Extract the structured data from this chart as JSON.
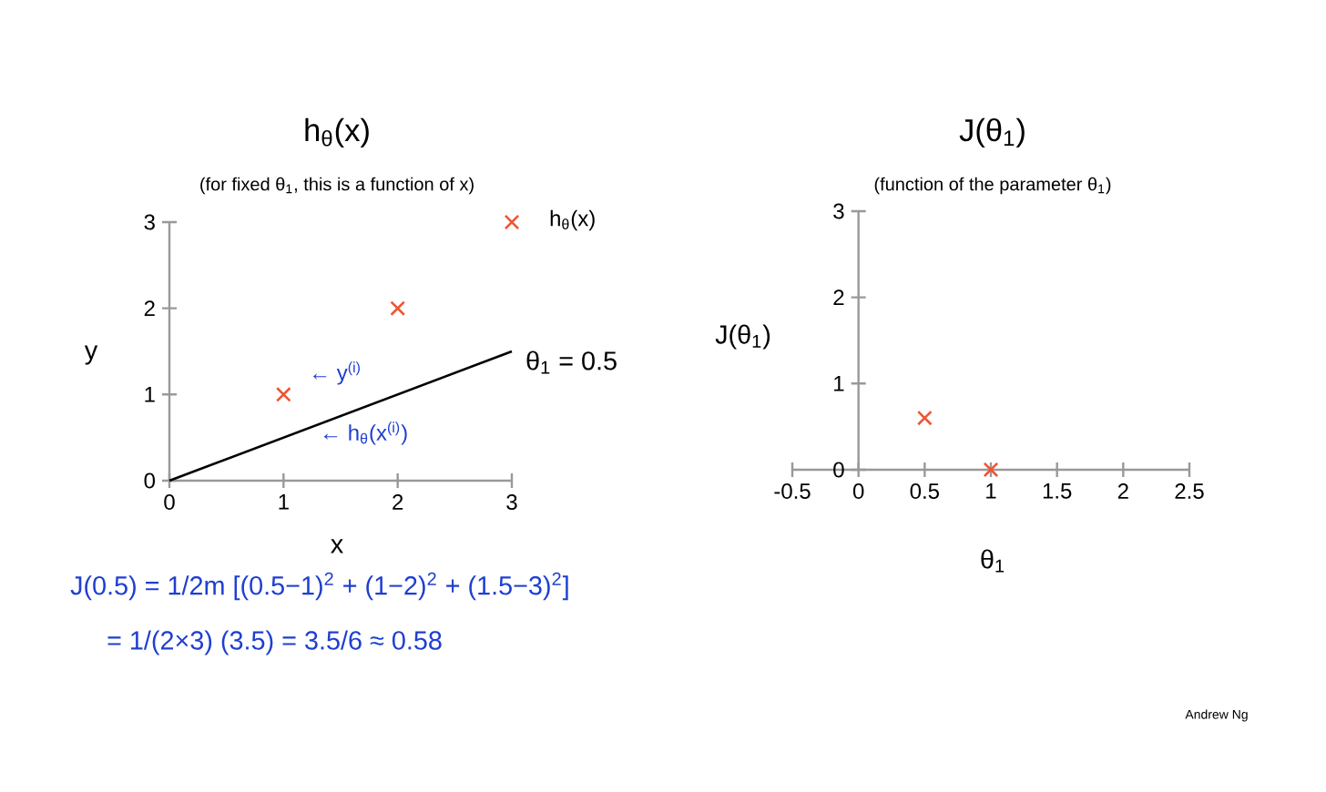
{
  "chart_data": [
    {
      "type": "scatter",
      "title": "h$_{θ}$(x)",
      "subtitle": "(for fixed θ$_{1}$, this is a function of x)",
      "xlabel": "x",
      "ylabel": "y",
      "xlim": [
        0,
        3
      ],
      "ylim": [
        0,
        3
      ],
      "xticks": [
        0,
        1,
        2,
        3
      ],
      "yticks": [
        0,
        1,
        2,
        3
      ],
      "marker": "cross",
      "series": [
        {
          "x": [
            1,
            2,
            3
          ],
          "values": [
            1,
            2,
            3
          ],
          "color": "#e8453c"
        },
        {
          "type": "line",
          "x": [
            0,
            3
          ],
          "values": [
            0,
            1.5
          ],
          "color": "#000000",
          "marker": "none"
        }
      ],
      "annotations": [
        "h$_{θ}$(x)",
        "θ$_{1}$ = 0.5",
        "← y$^{(i)}$",
        "← h$_{θ}$(x$^{(i)}$)",
        "J(0.5) = 1/2m [(0.5−1)$^{2}$ + (1−2)$^{2}$ + (1.5−3)$^{2}$]",
        "= 1/(2×3) (3.5) = 3.5/6 ≈ 0.58"
      ]
    },
    {
      "type": "scatter",
      "title": "J(θ$_{1}$)",
      "subtitle": "(function of the parameter θ$_{1}$)",
      "xlabel": "θ$_{1}$",
      "ylabel": "J(θ$_{1}$)",
      "xlim": [
        -0.5,
        2.5
      ],
      "ylim": [
        0,
        3
      ],
      "xticks": [
        -0.5,
        0,
        0.5,
        1,
        1.5,
        2,
        2.5
      ],
      "yticks": [
        0,
        1,
        2,
        3
      ],
      "marker": "cross",
      "series": [
        {
          "x": [
            0.5,
            1
          ],
          "values": [
            0.6,
            0
          ],
          "color": "#e8453c"
        }
      ],
      "annotations": [
        "Andrew Ng"
      ]
    }
  ]
}
